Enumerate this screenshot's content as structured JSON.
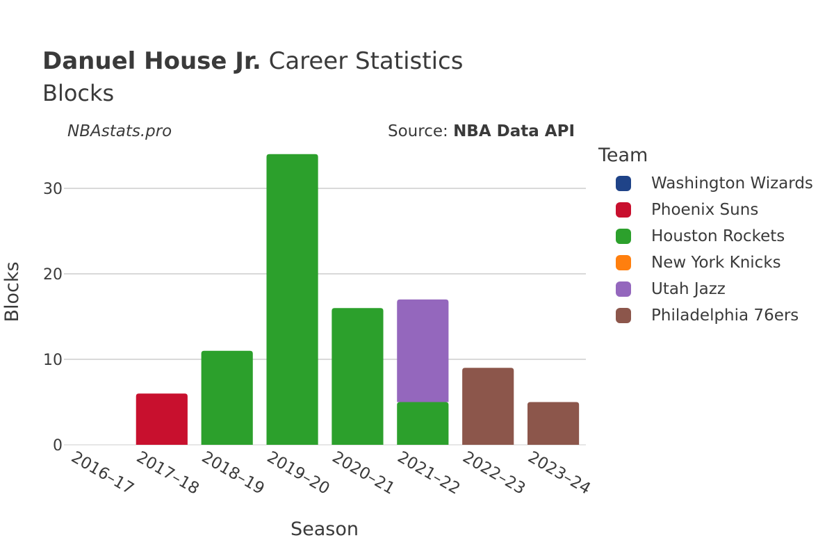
{
  "header": {
    "player": "Danuel House Jr.",
    "title_rest": "Career Statistics",
    "subtitle": "Blocks",
    "site": "NBAstats.pro",
    "source_prefix": "Source:",
    "source_name": "NBA Data API"
  },
  "legend": {
    "title": "Team",
    "items": [
      {
        "label": "Washington Wizards",
        "color": "#1f4388"
      },
      {
        "label": "Phoenix Suns",
        "color": "#c8102e"
      },
      {
        "label": "Houston Rockets",
        "color": "#2ca02c"
      },
      {
        "label": "New York Knicks",
        "color": "#ff7f0e"
      },
      {
        "label": "Utah Jazz",
        "color": "#9467bd"
      },
      {
        "label": "Philadelphia 76ers",
        "color": "#8c564b"
      }
    ]
  },
  "chart_data": {
    "type": "bar",
    "stacked": true,
    "title": "Danuel House Jr. Career Statistics",
    "subtitle": "Blocks",
    "xlabel": "Season",
    "ylabel": "Blocks",
    "ylim": [
      0,
      34
    ],
    "yticks": [
      0,
      10,
      20,
      30
    ],
    "grid": true,
    "legend_position": "right",
    "categories": [
      "2016-17",
      "2017-18",
      "2018-19",
      "2019-20",
      "2020-21",
      "2021-22",
      "2022-23",
      "2023-24"
    ],
    "series": [
      {
        "name": "Washington Wizards",
        "color": "#1f4388",
        "values": [
          0,
          0,
          0,
          0,
          0,
          0,
          0,
          0
        ]
      },
      {
        "name": "Phoenix Suns",
        "color": "#c8102e",
        "values": [
          0,
          6,
          0,
          0,
          0,
          0,
          0,
          0
        ]
      },
      {
        "name": "Houston Rockets",
        "color": "#2ca02c",
        "values": [
          0,
          0,
          11,
          34,
          16,
          5,
          0,
          0
        ]
      },
      {
        "name": "New York Knicks",
        "color": "#ff7f0e",
        "values": [
          0,
          0,
          0,
          0,
          0,
          0,
          0,
          0
        ]
      },
      {
        "name": "Utah Jazz",
        "color": "#9467bd",
        "values": [
          0,
          0,
          0,
          0,
          0,
          12,
          0,
          0
        ]
      },
      {
        "name": "Philadelphia 76ers",
        "color": "#8c564b",
        "values": [
          0,
          0,
          0,
          0,
          0,
          0,
          9,
          5
        ]
      }
    ]
  }
}
